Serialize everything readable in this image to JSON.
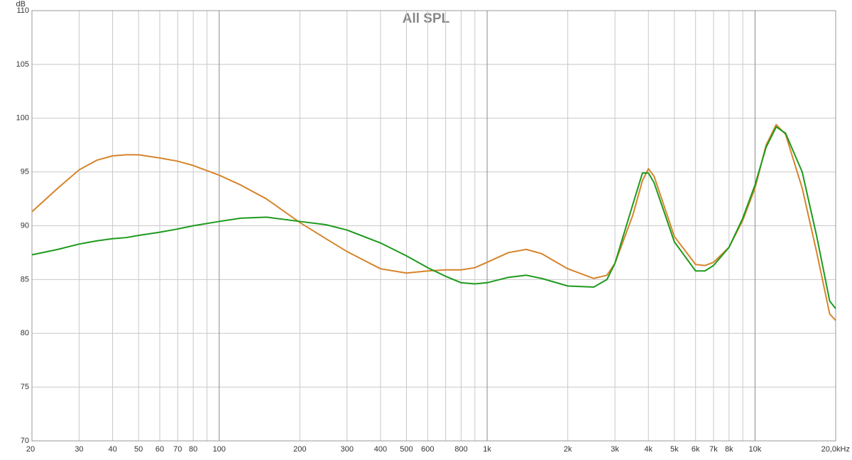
{
  "chart_data": {
    "type": "line",
    "title": "All SPL",
    "y_label": "dB",
    "log_x": true,
    "grid": true,
    "x": [
      20,
      25,
      30,
      35,
      40,
      45,
      50,
      60,
      70,
      80,
      100,
      120,
      150,
      200,
      250,
      300,
      400,
      500,
      600,
      700,
      800,
      900,
      1000,
      1200,
      1400,
      1600,
      2000,
      2500,
      2800,
      3000,
      3500,
      3800,
      4000,
      4200,
      5000,
      6000,
      6500,
      7000,
      8000,
      9000,
      10000,
      11000,
      12000,
      13000,
      15000,
      17000,
      19000,
      20000
    ],
    "series": [
      {
        "color": "#d6842a",
        "values": [
          91.3,
          93.5,
          95.2,
          96.1,
          96.5,
          96.6,
          96.6,
          96.3,
          96.0,
          95.6,
          94.7,
          93.8,
          92.5,
          90.3,
          88.8,
          87.6,
          86.0,
          85.6,
          85.8,
          85.9,
          85.9,
          86.1,
          86.6,
          87.5,
          87.8,
          87.4,
          86.0,
          85.1,
          85.4,
          86.5,
          91.0,
          94.2,
          95.3,
          94.6,
          89.0,
          86.4,
          86.3,
          86.6,
          88.0,
          90.5,
          93.5,
          97.5,
          99.4,
          98.5,
          93.5,
          87.5,
          81.8,
          81.2
        ]
      },
      {
        "color": "#1c9a1c",
        "values": [
          87.3,
          87.8,
          88.3,
          88.6,
          88.8,
          88.9,
          89.1,
          89.4,
          89.7,
          90.0,
          90.4,
          90.7,
          90.8,
          90.4,
          90.1,
          89.6,
          88.4,
          87.2,
          86.1,
          85.3,
          84.7,
          84.6,
          84.7,
          85.2,
          85.4,
          85.1,
          84.4,
          84.3,
          85.0,
          86.5,
          92.0,
          94.9,
          94.9,
          94.0,
          88.5,
          85.8,
          85.8,
          86.3,
          88.0,
          90.7,
          93.8,
          97.3,
          99.2,
          98.6,
          95.0,
          89.0,
          83.0,
          82.3
        ]
      }
    ],
    "xlim": [
      20,
      20000
    ],
    "xticks": [
      20,
      30,
      40,
      50,
      60,
      70,
      80,
      100,
      200,
      300,
      400,
      500,
      600,
      800,
      {
        "value": 1000,
        "label": "1k"
      },
      {
        "value": 2000,
        "label": "2k"
      },
      {
        "value": 3000,
        "label": "3k"
      },
      {
        "value": 4000,
        "label": "4k"
      },
      {
        "value": 5000,
        "label": "5k"
      },
      {
        "value": 6000,
        "label": "6k"
      },
      {
        "value": 7000,
        "label": "7k"
      },
      {
        "value": 8000,
        "label": "8k"
      },
      {
        "value": 10000,
        "label": "10k"
      },
      {
        "value": 20000,
        "label": "20,0kHz"
      }
    ],
    "minor_xticks": [
      90,
      700,
      900,
      9000
    ],
    "ylim": [
      70,
      110
    ],
    "yticks": [
      70,
      75,
      80,
      85,
      90,
      95,
      100,
      105,
      110
    ]
  }
}
